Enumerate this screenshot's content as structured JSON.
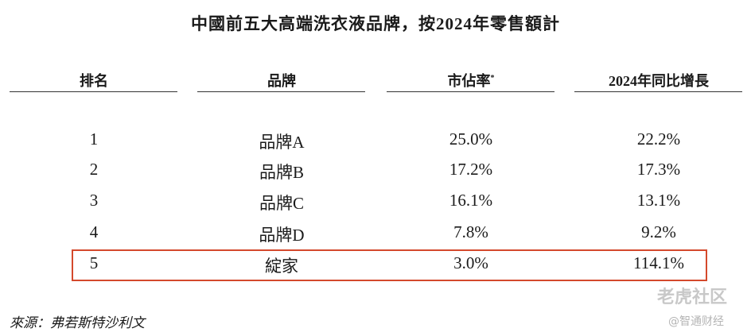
{
  "header": {
    "title": "中國前五大高端洗衣液品牌，按2024年零售額計"
  },
  "table": {
    "columns": [
      {
        "text": "排名"
      },
      {
        "text": "品牌"
      },
      {
        "text": "市佔率",
        "mark": "*"
      },
      {
        "text": "2024年同比增長"
      }
    ],
    "rows": [
      [
        "1",
        "品牌A",
        "25.0%",
        "22.2%"
      ],
      [
        "2",
        "品牌B",
        "17.2%",
        "17.3%"
      ],
      [
        "3",
        "品牌C",
        "16.1%",
        "13.1%"
      ],
      [
        "4",
        "品牌D",
        "7.8%",
        "9.2%"
      ],
      [
        "5",
        "綻家",
        "3.0%",
        "114.1%"
      ]
    ],
    "highlight_row": 4
  },
  "footer": {
    "source": "來源：弗若斯特沙利文"
  },
  "watermark": {
    "brand": "老虎社区",
    "credit": "@智通财经"
  }
}
